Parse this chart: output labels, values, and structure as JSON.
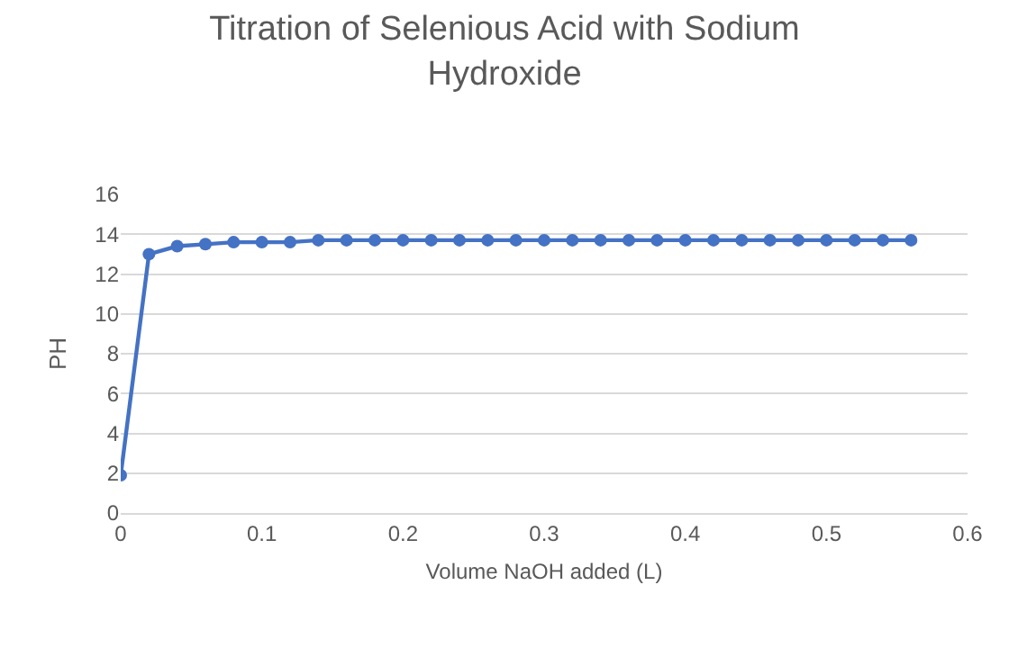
{
  "chart_data": {
    "type": "line",
    "title": "Titration of Selenious Acid with Sodium Hydroxide",
    "xlabel": "Volume NaOH added (L)",
    "ylabel": "PH",
    "x": [
      0,
      0.02,
      0.04,
      0.06,
      0.08,
      0.1,
      0.12,
      0.14,
      0.16,
      0.18,
      0.2,
      0.22,
      0.24,
      0.26,
      0.28,
      0.3,
      0.32,
      0.34,
      0.36,
      0.38,
      0.4,
      0.42,
      0.44,
      0.46,
      0.48,
      0.5,
      0.52,
      0.54,
      0.56
    ],
    "series": [
      {
        "color": "#4472c4",
        "values": [
          1.9,
          13.0,
          13.4,
          13.5,
          13.6,
          13.6,
          13.6,
          13.7,
          13.7,
          13.7,
          13.7,
          13.7,
          13.7,
          13.7,
          13.7,
          13.7,
          13.7,
          13.7,
          13.7,
          13.7,
          13.7,
          13.7,
          13.7,
          13.7,
          13.7,
          13.7,
          13.7,
          13.7,
          13.7
        ]
      }
    ],
    "xlim": [
      0,
      0.6
    ],
    "xticks": [
      0,
      0.1,
      0.2,
      0.3,
      0.4,
      0.5,
      0.6
    ],
    "ylim": [
      0,
      16
    ],
    "yticks": [
      0,
      2,
      4,
      6,
      8,
      10,
      12,
      14,
      16
    ],
    "grid": "y",
    "marker": "circle",
    "line_style": "solid"
  }
}
